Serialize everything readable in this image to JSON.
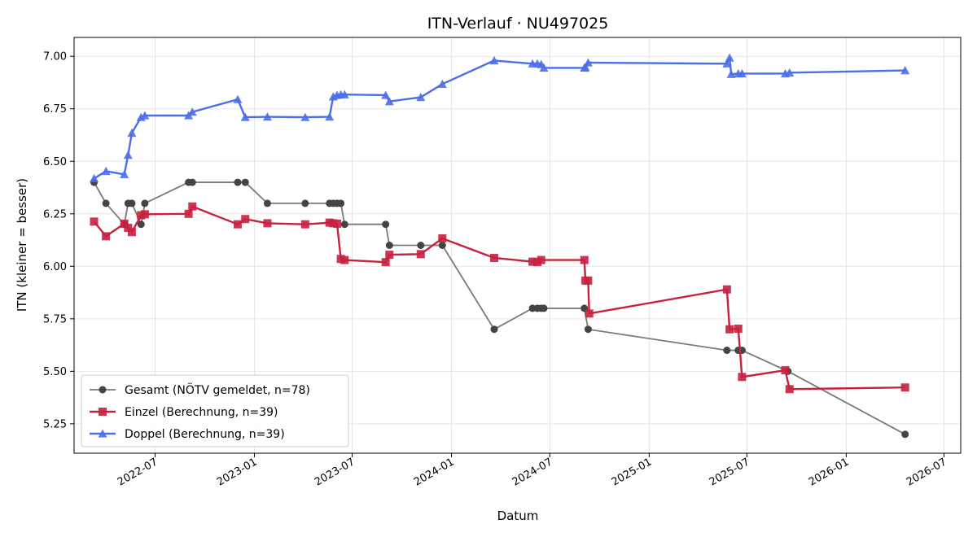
{
  "chart_data": {
    "type": "line",
    "title": "ITN-Verlauf · NU497025",
    "xlabel": "Datum",
    "ylabel": "ITN  (kleiner = besser)",
    "ylim": [
      5.11,
      7.09
    ],
    "xlim": [
      "2022-02-01",
      "2026-08-01"
    ],
    "y_ticks": [
      5.25,
      5.5,
      5.75,
      6.0,
      6.25,
      6.5,
      6.75,
      7.0
    ],
    "y_tick_labels": [
      "5.25",
      "5.50",
      "5.75",
      "6.00",
      "6.25",
      "6.50",
      "6.75",
      "7.00"
    ],
    "x_ticks": [
      "2022-07-01",
      "2023-01-01",
      "2023-07-01",
      "2024-01-01",
      "2024-07-01",
      "2025-01-01",
      "2025-07-01",
      "2026-01-01",
      "2026-07-01"
    ],
    "x_tick_labels": [
      "2022-07",
      "2023-01",
      "2023-07",
      "2024-01",
      "2024-07",
      "2025-01",
      "2025-07",
      "2026-01",
      "2026-07"
    ],
    "grid": true,
    "legend_position": "bottom-left",
    "series": [
      {
        "name": "Gesamt (NÖTV gemeldet, n=78)",
        "color": "#444444",
        "marker": "circle",
        "points": [
          [
            "2022-03-10",
            6.4
          ],
          [
            "2022-04-01",
            6.3
          ],
          [
            "2022-05-05",
            6.2
          ],
          [
            "2022-05-12",
            6.3
          ],
          [
            "2022-05-19",
            6.3
          ],
          [
            "2022-06-05",
            6.2
          ],
          [
            "2022-06-12",
            6.3
          ],
          [
            "2022-09-01",
            6.4
          ],
          [
            "2022-09-08",
            6.4
          ],
          [
            "2022-12-01",
            6.4
          ],
          [
            "2022-12-15",
            6.4
          ],
          [
            "2023-01-25",
            6.3
          ],
          [
            "2023-04-05",
            6.3
          ],
          [
            "2023-05-20",
            6.3
          ],
          [
            "2023-05-27",
            6.3
          ],
          [
            "2023-06-03",
            6.3
          ],
          [
            "2023-06-10",
            6.3
          ],
          [
            "2023-06-17",
            6.2
          ],
          [
            "2023-09-01",
            6.2
          ],
          [
            "2023-09-08",
            6.1
          ],
          [
            "2023-11-05",
            6.1
          ],
          [
            "2023-12-15",
            6.1
          ],
          [
            "2024-03-20",
            5.7
          ],
          [
            "2024-05-30",
            5.8
          ],
          [
            "2024-06-08",
            5.8
          ],
          [
            "2024-06-15",
            5.8
          ],
          [
            "2024-06-20",
            5.8
          ],
          [
            "2024-09-03",
            5.8
          ],
          [
            "2024-09-10",
            5.7
          ],
          [
            "2025-05-25",
            5.6
          ],
          [
            "2025-06-15",
            5.6
          ],
          [
            "2025-06-22",
            5.6
          ],
          [
            "2025-09-15",
            5.5
          ],
          [
            "2026-04-20",
            5.2
          ]
        ]
      },
      {
        "name": "Einzel (Berechnung, n=39)",
        "color": "#c8203f",
        "marker": "square",
        "points": [
          [
            "2022-03-10",
            6.213
          ],
          [
            "2022-04-01",
            6.143
          ],
          [
            "2022-05-05",
            6.203
          ],
          [
            "2022-05-12",
            6.183
          ],
          [
            "2022-05-19",
            6.163
          ],
          [
            "2022-06-05",
            6.243
          ],
          [
            "2022-06-12",
            6.248
          ],
          [
            "2022-09-01",
            6.25
          ],
          [
            "2022-09-08",
            6.285
          ],
          [
            "2022-12-01",
            6.2
          ],
          [
            "2022-12-15",
            6.225
          ],
          [
            "2023-01-25",
            6.205
          ],
          [
            "2023-04-05",
            6.2
          ],
          [
            "2023-05-20",
            6.208
          ],
          [
            "2023-05-27",
            6.205
          ],
          [
            "2023-06-03",
            6.203
          ],
          [
            "2023-06-10",
            6.035
          ],
          [
            "2023-06-17",
            6.03
          ],
          [
            "2023-09-01",
            6.02
          ],
          [
            "2023-09-08",
            6.055
          ],
          [
            "2023-11-05",
            6.058
          ],
          [
            "2023-12-15",
            6.133
          ],
          [
            "2024-03-20",
            6.04
          ],
          [
            "2024-05-30",
            6.022
          ],
          [
            "2024-06-08",
            6.02
          ],
          [
            "2024-06-15",
            6.03
          ],
          [
            "2024-09-03",
            6.03
          ],
          [
            "2024-09-05",
            5.932
          ],
          [
            "2024-09-10",
            5.932
          ],
          [
            "2024-09-12",
            5.775
          ],
          [
            "2025-05-25",
            5.89
          ],
          [
            "2025-05-30",
            5.7
          ],
          [
            "2025-06-15",
            5.703
          ],
          [
            "2025-06-22",
            5.473
          ],
          [
            "2025-09-10",
            5.505
          ],
          [
            "2025-09-18",
            5.415
          ],
          [
            "2026-04-20",
            5.423
          ]
        ]
      },
      {
        "name": "Doppel (Berechnung, n=39)",
        "color": "#4c6ee8",
        "marker": "triangle",
        "points": [
          [
            "2022-03-10",
            6.418
          ],
          [
            "2022-04-01",
            6.453
          ],
          [
            "2022-05-05",
            6.438
          ],
          [
            "2022-05-12",
            6.53
          ],
          [
            "2022-05-19",
            6.635
          ],
          [
            "2022-06-05",
            6.71
          ],
          [
            "2022-06-12",
            6.718
          ],
          [
            "2022-09-01",
            6.718
          ],
          [
            "2022-09-08",
            6.735
          ],
          [
            "2022-12-01",
            6.795
          ],
          [
            "2022-12-15",
            6.71
          ],
          [
            "2023-01-25",
            6.712
          ],
          [
            "2023-04-05",
            6.71
          ],
          [
            "2023-05-20",
            6.712
          ],
          [
            "2023-05-27",
            6.808
          ],
          [
            "2023-06-03",
            6.815
          ],
          [
            "2023-06-10",
            6.818
          ],
          [
            "2023-06-17",
            6.818
          ],
          [
            "2023-09-01",
            6.815
          ],
          [
            "2023-09-08",
            6.785
          ],
          [
            "2023-11-05",
            6.805
          ],
          [
            "2023-12-15",
            6.868
          ],
          [
            "2024-03-20",
            6.98
          ],
          [
            "2024-05-30",
            6.965
          ],
          [
            "2024-06-08",
            6.965
          ],
          [
            "2024-06-15",
            6.962
          ],
          [
            "2024-06-20",
            6.945
          ],
          [
            "2024-09-03",
            6.945
          ],
          [
            "2024-09-05",
            6.948
          ],
          [
            "2024-09-10",
            6.97
          ],
          [
            "2025-05-25",
            6.965
          ],
          [
            "2025-05-30",
            6.993
          ],
          [
            "2025-06-02",
            6.915
          ],
          [
            "2025-06-15",
            6.918
          ],
          [
            "2025-06-22",
            6.918
          ],
          [
            "2025-09-10",
            6.918
          ],
          [
            "2025-09-18",
            6.922
          ],
          [
            "2026-04-20",
            6.933
          ]
        ]
      }
    ]
  }
}
